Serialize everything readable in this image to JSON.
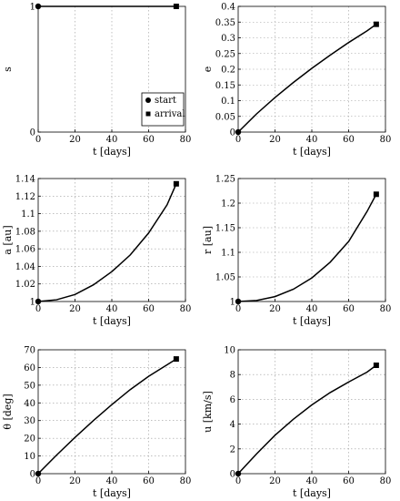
{
  "chart_data": [
    {
      "type": "line",
      "xlabel": "t [days]",
      "ylabel": "s",
      "xlim": [
        0,
        80
      ],
      "ylim": [
        0,
        1
      ],
      "xticks": [
        "0",
        "20",
        "40",
        "60",
        "80"
      ],
      "yticks": [
        "0",
        "1"
      ],
      "grid": true,
      "legend": {
        "placement": "bottom-right",
        "entries": [
          {
            "marker": "circle",
            "label": "start"
          },
          {
            "marker": "square",
            "label": "arrival"
          }
        ]
      },
      "series": [
        {
          "x": [
            0,
            75
          ],
          "y": [
            1,
            1
          ]
        }
      ],
      "start": [
        0,
        1
      ],
      "arrival": [
        75,
        1
      ]
    },
    {
      "type": "line",
      "xlabel": "t [days]",
      "ylabel": "e",
      "xlim": [
        0,
        80
      ],
      "ylim": [
        0,
        0.4
      ],
      "xticks": [
        "0",
        "20",
        "40",
        "60",
        "80"
      ],
      "yticks": [
        "0",
        "0.05",
        "0.1",
        "0.15",
        "0.2",
        "0.25",
        "0.3",
        "0.35",
        "0.4"
      ],
      "grid": true,
      "series": [
        {
          "x": [
            0,
            10,
            20,
            30,
            40,
            50,
            60,
            70,
            75
          ],
          "y": [
            0,
            0.058,
            0.11,
            0.158,
            0.203,
            0.245,
            0.285,
            0.322,
            0.343
          ]
        }
      ],
      "start": [
        0,
        0
      ],
      "arrival": [
        75,
        0.343
      ]
    },
    {
      "type": "line",
      "xlabel": "t [days]",
      "ylabel": "a [au]",
      "xlim": [
        0,
        80
      ],
      "ylim": [
        1,
        1.14
      ],
      "xticks": [
        "0",
        "20",
        "40",
        "60",
        "80"
      ],
      "yticks": [
        "1",
        "1.02",
        "1.04",
        "1.06",
        "1.08",
        "1.1",
        "1.12",
        "1.14"
      ],
      "grid": true,
      "series": [
        {
          "x": [
            0,
            10,
            20,
            30,
            40,
            50,
            60,
            70,
            75
          ],
          "y": [
            1.0,
            1.002,
            1.008,
            1.019,
            1.034,
            1.053,
            1.078,
            1.11,
            1.134
          ]
        }
      ],
      "start": [
        0,
        1.0
      ],
      "arrival": [
        75,
        1.134
      ]
    },
    {
      "type": "line",
      "xlabel": "t [days]",
      "ylabel": "r [au]",
      "xlim": [
        0,
        80
      ],
      "ylim": [
        1,
        1.25
      ],
      "xticks": [
        "0",
        "20",
        "40",
        "60",
        "80"
      ],
      "yticks": [
        "1",
        "1.05",
        "1.1",
        "1.15",
        "1.2",
        "1.25"
      ],
      "grid": true,
      "series": [
        {
          "x": [
            0,
            10,
            20,
            30,
            40,
            50,
            60,
            70,
            75
          ],
          "y": [
            1.0,
            1.002,
            1.01,
            1.025,
            1.048,
            1.08,
            1.122,
            1.183,
            1.218
          ]
        }
      ],
      "start": [
        0,
        1.0
      ],
      "arrival": [
        75,
        1.218
      ]
    },
    {
      "type": "line",
      "xlabel": "t [days]",
      "ylabel": "θ [deg]",
      "xlim": [
        0,
        80
      ],
      "ylim": [
        0,
        70
      ],
      "xticks": [
        "0",
        "20",
        "40",
        "60",
        "80"
      ],
      "yticks": [
        "0",
        "10",
        "20",
        "30",
        "40",
        "50",
        "60",
        "70"
      ],
      "grid": true,
      "series": [
        {
          "x": [
            0,
            10,
            20,
            30,
            40,
            50,
            60,
            70,
            75
          ],
          "y": [
            0,
            10.5,
            20.5,
            30,
            39,
            47.5,
            55,
            61.5,
            64.8
          ]
        }
      ],
      "start": [
        0,
        0
      ],
      "arrival": [
        75,
        64.8
      ]
    },
    {
      "type": "line",
      "xlabel": "t [days]",
      "ylabel": "u [km/s]",
      "xlim": [
        0,
        80
      ],
      "ylim": [
        0,
        10
      ],
      "xticks": [
        "0",
        "20",
        "40",
        "60",
        "80"
      ],
      "yticks": [
        "0",
        "2",
        "4",
        "6",
        "8",
        "10"
      ],
      "grid": true,
      "series": [
        {
          "x": [
            0,
            10,
            20,
            30,
            40,
            50,
            60,
            70,
            75
          ],
          "y": [
            0,
            1.6,
            3.1,
            4.4,
            5.55,
            6.55,
            7.4,
            8.2,
            8.75
          ]
        }
      ],
      "start": [
        0,
        0
      ],
      "arrival": [
        75,
        8.75
      ]
    }
  ]
}
